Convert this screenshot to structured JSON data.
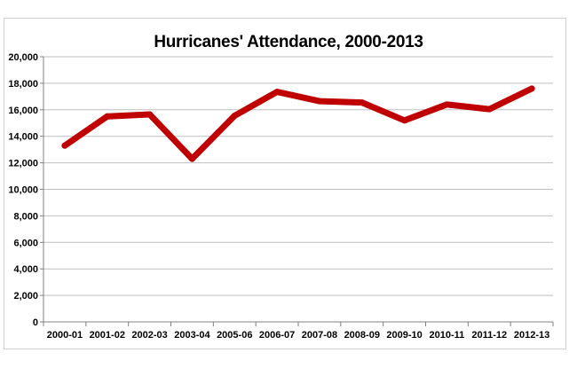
{
  "chart_data": {
    "type": "line",
    "title": "Hurricanes' Attendance, 2000-2013",
    "xlabel": "",
    "ylabel": "",
    "categories": [
      "2000-01",
      "2001-02",
      "2002-03",
      "2003-04",
      "2005-06",
      "2006-07",
      "2007-08",
      "2008-09",
      "2009-10",
      "2010-11",
      "2011-12",
      "2012-13"
    ],
    "series": [
      {
        "values": [
          13300,
          15500,
          15650,
          12300,
          15550,
          17350,
          16650,
          16550,
          15200,
          16400,
          16050,
          17600
        ]
      }
    ],
    "ylim": [
      0,
      20000
    ],
    "yticks": [
      0,
      2000,
      4000,
      6000,
      8000,
      10000,
      12000,
      14000,
      16000,
      18000,
      20000
    ],
    "ytick_labels": [
      "0",
      "2,000",
      "4,000",
      "6,000",
      "8,000",
      "10,000",
      "12,000",
      "14,000",
      "16,000",
      "18,000",
      "20,000"
    ],
    "grid": true,
    "legend": "none",
    "line_color": "#c00000"
  }
}
